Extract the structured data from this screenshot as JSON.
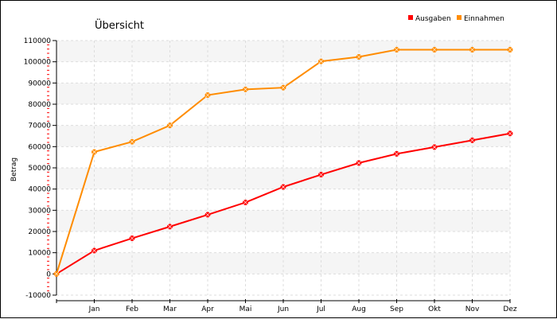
{
  "chart_data": {
    "type": "line",
    "title": "Übersicht",
    "xlabel": "",
    "ylabel": "Betrag",
    "ylim": [
      -10000,
      110000
    ],
    "y_ticks": [
      -10000,
      0,
      10000,
      20000,
      30000,
      40000,
      50000,
      60000,
      70000,
      80000,
      90000,
      100000,
      110000
    ],
    "y_tick_labels": [
      "-10000",
      "0",
      "10000",
      "20000",
      "30000",
      "40000",
      "50000",
      "60000",
      "70000",
      "80000",
      "90000",
      "100000",
      "110000"
    ],
    "categories": [
      "",
      "Jan",
      "Feb",
      "Mar",
      "Apr",
      "Mai",
      "Jun",
      "Jul",
      "Aug",
      "Sep",
      "Okt",
      "Nov",
      "Dez"
    ],
    "legend_position": "top-right",
    "grid": true,
    "series": [
      {
        "name": "Ausgaben",
        "color": "#ff0000",
        "values": [
          0,
          11000,
          16800,
          22300,
          27900,
          33700,
          41000,
          46800,
          52300,
          56600,
          59800,
          63000,
          66200
        ]
      },
      {
        "name": "Einnahmen",
        "color": "#ff8c00",
        "values": [
          0,
          57500,
          62300,
          70000,
          84300,
          87000,
          87800,
          100200,
          102300,
          105700,
          105700,
          105700,
          105700
        ]
      }
    ]
  }
}
